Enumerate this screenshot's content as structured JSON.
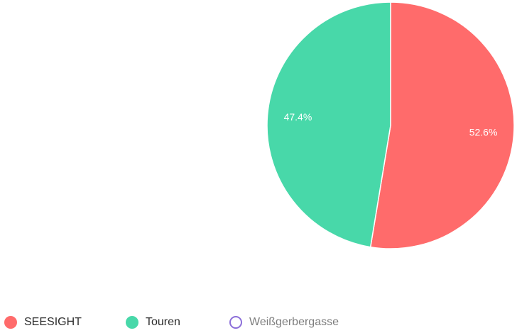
{
  "chart_data": {
    "type": "pie",
    "slices": [
      {
        "label": "SEESIGHT",
        "value": 52.6,
        "display": "52.6%",
        "color": "#ff6b6b",
        "visible": true
      },
      {
        "label": "Touren",
        "value": 47.4,
        "display": "47.4%",
        "color": "#48d8a9",
        "visible": true
      },
      {
        "label": "Weißgerbergasse",
        "value": 0,
        "display": "",
        "color": "#8c6fd9",
        "visible": false
      }
    ],
    "legend_position": "bottom"
  }
}
